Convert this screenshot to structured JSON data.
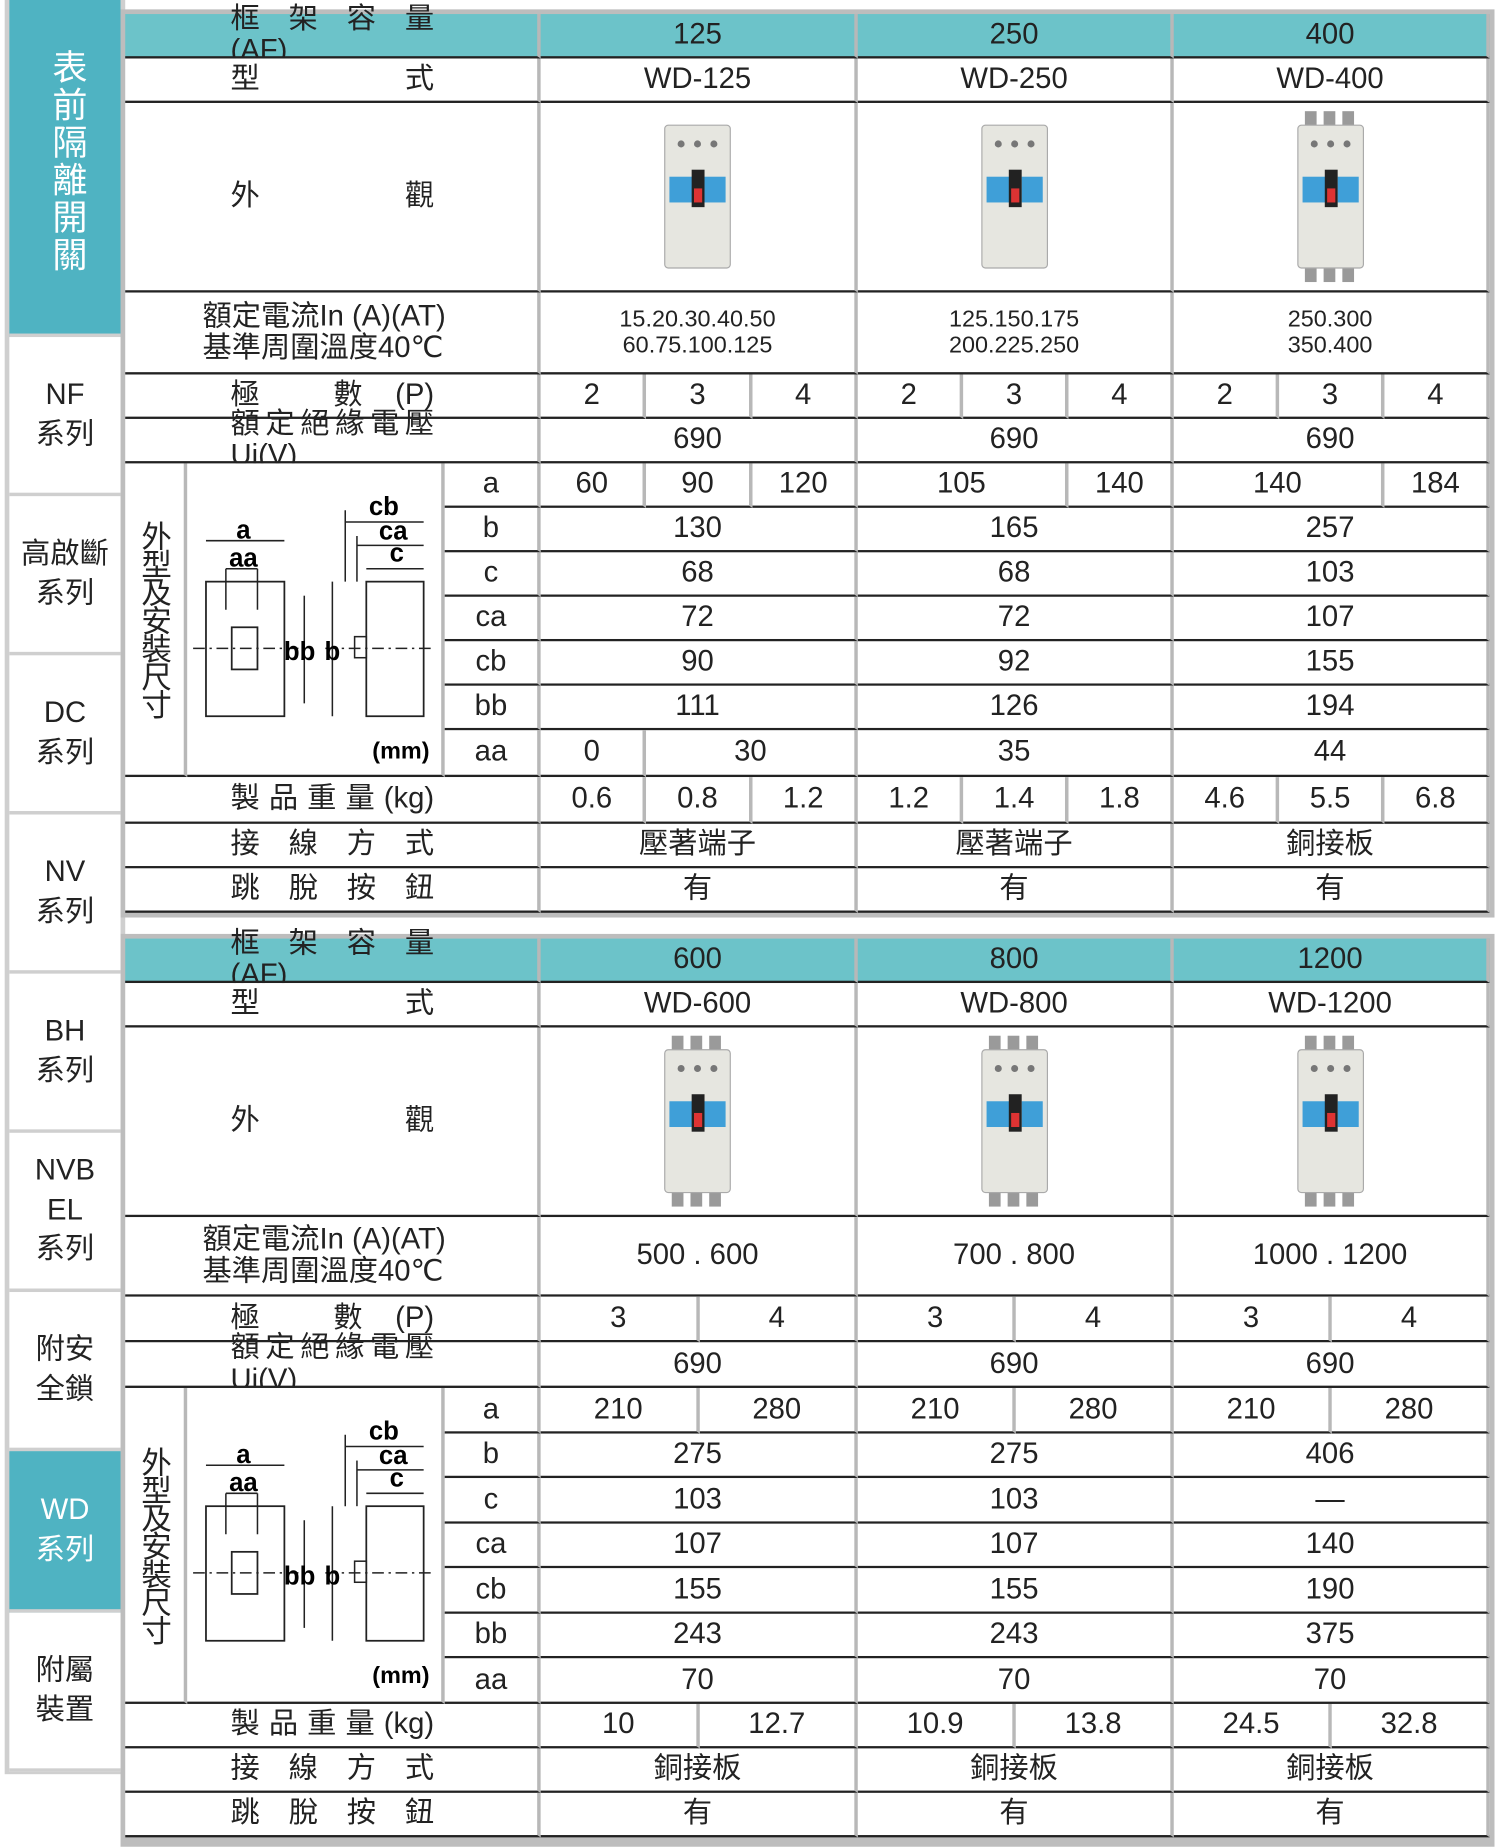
{
  "sidebar": [
    [
      "表前隔離開關"
    ],
    [
      "NF",
      "系列"
    ],
    [
      "高啟斷",
      "系列"
    ],
    [
      "DC",
      "系列"
    ],
    [
      "NV",
      "系列"
    ],
    [
      "BH",
      "系列"
    ],
    [
      "NVB",
      "EL",
      "系列"
    ],
    [
      "附安",
      "全鎖"
    ],
    [
      "WD",
      "系列"
    ],
    [
      "附屬",
      "裝置"
    ]
  ],
  "tables": [
    {
      "labels": {
        "frame": "框 架 容 量 (AF)",
        "model": "型 式",
        "appearance": "外 觀",
        "current": [
          "額定電流In (A)(AT)",
          "基準周圍溫度40℃"
        ],
        "poles": "極 數(P)",
        "ui": "額定絕緣電壓Ui(V)",
        "dims": "外型及安裝尺寸",
        "weight": "製 品 重 量 (kg)",
        "connection": "接 線 方 式",
        "trip": "跳 脫 按 鈕"
      },
      "diagram": {
        "a": "a",
        "aa": "aa",
        "cb": "cb",
        "ca": "ca",
        "c": "c",
        "bb": "bb",
        "b": "b",
        "unit": "(mm)"
      },
      "dim_labels": [
        "a",
        "b",
        "c",
        "ca",
        "cb",
        "bb",
        "aa"
      ],
      "frames": [
        {
          "af": 125,
          "model": "WD-125",
          "current": [
            "15.20.30.40.50",
            "60.75.100.125"
          ],
          "poles": [
            2,
            3,
            4
          ],
          "ui": 690,
          "dims": [
            [
              60,
              90,
              120
            ],
            [
              130
            ],
            [
              68
            ],
            [
              72
            ],
            [
              90
            ],
            [
              111
            ],
            [
              0,
              30
            ]
          ],
          "weight": [
            0.6,
            0.8,
            1.2
          ],
          "connection": "壓著端子",
          "trip": "有"
        },
        {
          "af": 250,
          "model": "WD-250",
          "current": [
            "125.150.175",
            "200.225.250"
          ],
          "poles": [
            2,
            3,
            4
          ],
          "ui": 690,
          "dims": [
            [
              105,
              140
            ],
            [
              165
            ],
            [
              68
            ],
            [
              72
            ],
            [
              92
            ],
            [
              126
            ],
            [
              35
            ]
          ],
          "weight": [
            1.2,
            1.4,
            1.8
          ],
          "connection": "壓著端子",
          "trip": "有"
        },
        {
          "af": 400,
          "model": "WD-400",
          "current": [
            "250.300",
            "350.400"
          ],
          "poles": [
            2,
            3,
            4
          ],
          "ui": 690,
          "dims": [
            [
              140,
              184
            ],
            [
              257
            ],
            [
              103
            ],
            [
              107
            ],
            [
              155
            ],
            [
              194
            ],
            [
              44
            ]
          ],
          "weight": [
            4.6,
            5.5,
            6.8
          ],
          "connection": "銅接板",
          "trip": "有"
        }
      ]
    },
    {
      "labels": {
        "frame": "框 架 容 量 (AF)",
        "model": "型 式",
        "appearance": "外 觀",
        "current": [
          "額定電流In (A)(AT)",
          "基準周圍溫度40℃"
        ],
        "poles": "極 數(P)",
        "ui": "額定絕緣電壓Ui(V)",
        "dims": "外型及安裝尺寸",
        "weight": "製 品 重 量 (kg)",
        "connection": "接 線 方 式",
        "trip": "跳 脫 按 鈕"
      },
      "diagram": {
        "a": "a",
        "aa": "aa",
        "cb": "cb",
        "ca": "ca",
        "c": "c",
        "bb": "bb",
        "b": "b",
        "unit": "(mm)"
      },
      "dim_labels": [
        "a",
        "b",
        "c",
        "ca",
        "cb",
        "bb",
        "aa"
      ],
      "frames": [
        {
          "af": 600,
          "model": "WD-600",
          "current": [
            "500 . 600"
          ],
          "poles": [
            3,
            4
          ],
          "ui": 690,
          "dims": [
            [
              210,
              280
            ],
            [
              275
            ],
            [
              103
            ],
            [
              107
            ],
            [
              155
            ],
            [
              243
            ],
            [
              70
            ]
          ],
          "weight": [
            10,
            12.7
          ],
          "connection": "銅接板",
          "trip": "有"
        },
        {
          "af": 800,
          "model": "WD-800",
          "current": [
            "700 . 800"
          ],
          "poles": [
            3,
            4
          ],
          "ui": 690,
          "dims": [
            [
              210,
              280
            ],
            [
              275
            ],
            [
              103
            ],
            [
              107
            ],
            [
              155
            ],
            [
              243
            ],
            [
              70
            ]
          ],
          "weight": [
            10.9,
            13.8
          ],
          "connection": "銅接板",
          "trip": "有"
        },
        {
          "af": 1200,
          "model": "WD-1200",
          "current": [
            "1000 . 1200"
          ],
          "poles": [
            3,
            4
          ],
          "ui": 690,
          "dims": [
            [
              210,
              280
            ],
            [
              406
            ],
            [
              "—"
            ],
            [
              140
            ],
            [
              190
            ],
            [
              375
            ],
            [
              70
            ]
          ],
          "weight": [
            24.5,
            32.8
          ],
          "connection": "銅接板",
          "trip": "有"
        }
      ]
    }
  ]
}
